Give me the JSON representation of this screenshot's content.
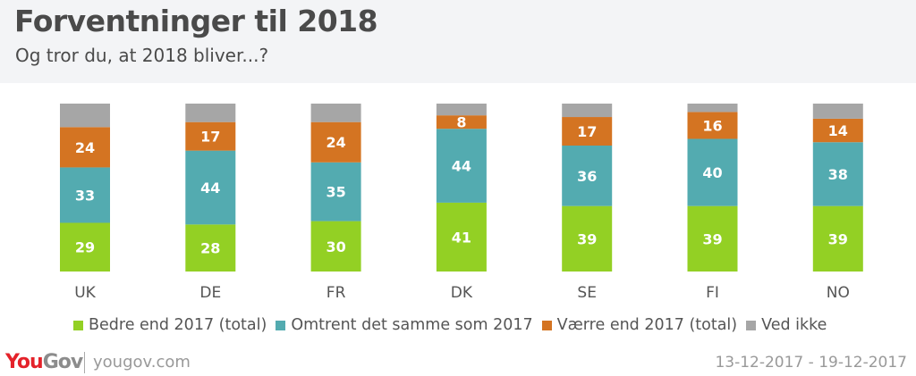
{
  "header": {
    "title": "Forventninger til 2018",
    "subtitle": "Og tror du, at 2018 bliver...?"
  },
  "footer": {
    "logo_you": "You",
    "logo_gov": "Gov",
    "url": "yougov.com",
    "date_range": "13-12-2017 - 19-12-2017"
  },
  "chart_data": {
    "type": "bar",
    "stacked": true,
    "title": "Forventninger til 2018",
    "subtitle": "Og tror du, at 2018 bliver...?",
    "xlabel": "",
    "ylabel": "",
    "ylim": [
      0,
      100
    ],
    "grid": false,
    "legend_position": "bottom",
    "categories": [
      "UK",
      "DE",
      "FR",
      "DK",
      "SE",
      "FI",
      "NO"
    ],
    "series": [
      {
        "name": "Bedre end 2017 (total)",
        "color": "#93d024",
        "values": [
          29,
          28,
          30,
          41,
          39,
          39,
          39
        ],
        "labeled": true
      },
      {
        "name": "Omtrent det samme som 2017",
        "color": "#53abb0",
        "values": [
          33,
          44,
          35,
          44,
          36,
          40,
          38
        ],
        "labeled": true
      },
      {
        "name": "Værre end 2017 (total)",
        "color": "#d47422",
        "values": [
          24,
          17,
          24,
          8,
          17,
          16,
          14
        ],
        "labeled": true
      },
      {
        "name": "Ved ikke",
        "color": "#a6a6a6",
        "values": [
          14,
          11,
          11,
          7,
          8,
          5,
          9
        ],
        "labeled": false
      }
    ]
  }
}
